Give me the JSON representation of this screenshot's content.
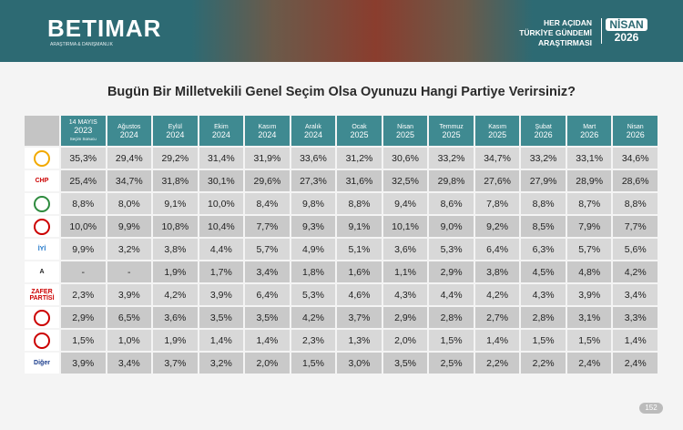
{
  "header": {
    "brand": "BETIMAR",
    "brand_sub": "ARAŞTIRMA & DANIŞMANLIK",
    "tagline": [
      "HER AÇIDAN",
      "TÜRKİYE GÜNDEMİ",
      "ARAŞTIRMASI"
    ],
    "badge_month": "NİSAN",
    "badge_year": "2026"
  },
  "title": "Bugün Bir Milletvekili Genel Seçim Olsa Oyunuzu Hangi Partiye Verirsiniz?",
  "table": {
    "columns": [
      {
        "month": "14 MAYIS",
        "year": "2023",
        "note": "Seçim Sonucu"
      },
      {
        "month": "Ağustos",
        "year": "2024"
      },
      {
        "month": "Eylül",
        "year": "2024"
      },
      {
        "month": "Ekim",
        "year": "2024"
      },
      {
        "month": "Kasım",
        "year": "2024"
      },
      {
        "month": "Aralık",
        "year": "2024"
      },
      {
        "month": "Ocak",
        "year": "2025"
      },
      {
        "month": "Nisan",
        "year": "2025"
      },
      {
        "month": "Temmuz",
        "year": "2025"
      },
      {
        "month": "Kasım",
        "year": "2025"
      },
      {
        "month": "Şubat",
        "year": "2026"
      },
      {
        "month": "Mart",
        "year": "2026"
      },
      {
        "month": "Nisan",
        "year": "2026"
      }
    ],
    "rows": [
      {
        "values": [
          "35,3%",
          "29,4%",
          "29,2%",
          "31,4%",
          "31,9%",
          "33,6%",
          "31,2%",
          "30,6%",
          "33,2%",
          "34,7%",
          "33,2%",
          "33,1%",
          "34,6%"
        ]
      },
      {
        "label": "CHP",
        "values": [
          "25,4%",
          "34,7%",
          "31,8%",
          "30,1%",
          "29,6%",
          "27,3%",
          "31,6%",
          "32,5%",
          "29,8%",
          "27,6%",
          "27,9%",
          "28,9%",
          "28,6%"
        ]
      },
      {
        "values": [
          "8,8%",
          "8,0%",
          "9,1%",
          "10,0%",
          "8,4%",
          "9,8%",
          "8,8%",
          "9,4%",
          "8,6%",
          "7,8%",
          "8,8%",
          "8,7%",
          "8,8%"
        ]
      },
      {
        "values": [
          "10,0%",
          "9,9%",
          "10,8%",
          "10,4%",
          "7,7%",
          "9,3%",
          "9,1%",
          "10,1%",
          "9,0%",
          "9,2%",
          "8,5%",
          "7,9%",
          "7,7%"
        ]
      },
      {
        "label": "İYİ",
        "values": [
          "9,9%",
          "3,2%",
          "3,8%",
          "4,4%",
          "5,7%",
          "4,9%",
          "5,1%",
          "3,6%",
          "5,3%",
          "6,4%",
          "6,3%",
          "5,7%",
          "5,6%"
        ]
      },
      {
        "label": "A",
        "values": [
          "-",
          "-",
          "1,9%",
          "1,7%",
          "3,4%",
          "1,8%",
          "1,6%",
          "1,1%",
          "2,9%",
          "3,8%",
          "4,5%",
          "4,8%",
          "4,2%"
        ]
      },
      {
        "label": "ZAFER PARTİSİ",
        "values": [
          "2,3%",
          "3,9%",
          "4,2%",
          "3,9%",
          "6,4%",
          "5,3%",
          "4,6%",
          "4,3%",
          "4,4%",
          "4,2%",
          "4,3%",
          "3,9%",
          "3,4%"
        ]
      },
      {
        "values": [
          "2,9%",
          "6,5%",
          "3,6%",
          "3,5%",
          "3,5%",
          "4,2%",
          "3,7%",
          "2,9%",
          "2,8%",
          "2,7%",
          "2,8%",
          "3,1%",
          "3,3%"
        ]
      },
      {
        "values": [
          "1,5%",
          "1,0%",
          "1,9%",
          "1,4%",
          "1,4%",
          "2,3%",
          "1,3%",
          "2,0%",
          "1,5%",
          "1,4%",
          "1,5%",
          "1,5%",
          "1,4%"
        ]
      },
      {
        "label": "Diğer",
        "values": [
          "3,9%",
          "3,4%",
          "3,7%",
          "3,2%",
          "2,0%",
          "1,5%",
          "3,0%",
          "3,5%",
          "2,5%",
          "2,2%",
          "2,2%",
          "2,4%",
          "2,4%"
        ]
      }
    ]
  },
  "page_number": "152"
}
